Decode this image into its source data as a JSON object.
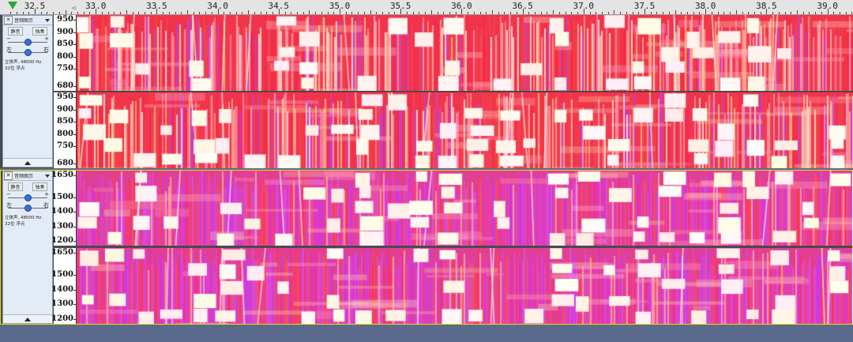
{
  "ruler": {
    "ticks": [
      "32.5",
      "33.0",
      "33.5",
      "34.0",
      "34.5",
      "35.0",
      "35.5",
      "36.0",
      "36.5",
      "37.0",
      "37.5",
      "38.0",
      "38.5",
      "39.0"
    ],
    "loop_marker": "⋖"
  },
  "tracks": [
    {
      "name": "音频图示",
      "close_label": "✕",
      "mute_label": "静音",
      "solo_label": "独奏",
      "gain_min": "−",
      "gain_max": "+",
      "pan_left": "左",
      "pan_right": "右",
      "info_line1": "立体声, 48000 Hz",
      "info_line2": "32位 浮点",
      "gain_level": 0.5,
      "pan_level": 0.5,
      "scale_labels": [
        "950",
        "900",
        "850",
        "800",
        "750",
        "680"
      ],
      "palette": "red"
    },
    {
      "name": "音频图示",
      "close_label": "✕",
      "mute_label": "静音",
      "solo_label": "独奏",
      "gain_min": "−",
      "gain_max": "+",
      "pan_left": "左",
      "pan_right": "右",
      "info_line1": "立体声, 48000 Hz",
      "info_line2": "32位 浮点",
      "gain_level": 0.5,
      "pan_level": 0.5,
      "scale_labels": [
        "1650",
        "1500",
        "1400",
        "1300",
        "1200"
      ],
      "palette": "magenta"
    }
  ],
  "colors": {
    "spectrum_red": "#f2344a",
    "spectrum_magenta": "#e03fb0",
    "spectrum_white": "#fff5f0",
    "selected_border": "#e8e000",
    "background": "#5a6a8c"
  }
}
